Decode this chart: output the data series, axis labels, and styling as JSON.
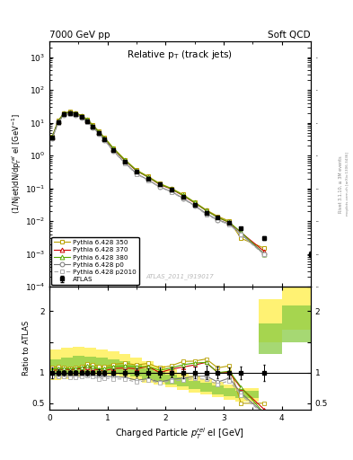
{
  "title_top_left": "7000 GeV pp",
  "title_top_right": "Soft QCD",
  "main_title": "Relative p$_{T}$ (track jets)",
  "ylabel_main": "(1/Njet)dN/dp$^{rel}_{T}$ el [GeV$^{-1}$]",
  "ylabel_ratio": "Ratio to ATLAS",
  "xlabel": "Charged Particle p$^{rel}_{T}$ el [GeV]",
  "watermark": "ATLAS_2011_I919017",
  "right_label_top": "Rivet 3.1.10, ≥ 3M events",
  "right_label_bot": "mcplots.cern.ch [arXiv:1306.3436]",
  "xlim": [
    0,
    4.5
  ],
  "ylim_main": [
    0.0001,
    3000.0
  ],
  "ylim_ratio": [
    0.4,
    2.4
  ],
  "atlas_x": [
    0.05,
    0.15,
    0.25,
    0.35,
    0.45,
    0.55,
    0.65,
    0.75,
    0.85,
    0.95,
    1.1,
    1.3,
    1.5,
    1.7,
    1.9,
    2.1,
    2.3,
    2.5,
    2.7,
    2.9,
    3.1,
    3.3,
    3.7,
    4.5
  ],
  "atlas_y": [
    3.5,
    10.5,
    18.0,
    20.0,
    18.5,
    15.0,
    11.0,
    7.5,
    5.0,
    3.2,
    1.5,
    0.65,
    0.32,
    0.2,
    0.13,
    0.09,
    0.055,
    0.032,
    0.018,
    0.013,
    0.009,
    0.006,
    0.003,
    0.001
  ],
  "atlas_yerr": [
    0.3,
    0.5,
    0.8,
    0.8,
    0.7,
    0.6,
    0.5,
    0.3,
    0.25,
    0.15,
    0.08,
    0.04,
    0.02,
    0.015,
    0.01,
    0.007,
    0.005,
    0.003,
    0.002,
    0.0012,
    0.0008,
    0.0006,
    0.0004,
    0.0002
  ],
  "py350_x": [
    0.05,
    0.15,
    0.25,
    0.35,
    0.45,
    0.55,
    0.65,
    0.75,
    0.85,
    0.95,
    1.1,
    1.3,
    1.5,
    1.7,
    1.9,
    2.1,
    2.3,
    2.5,
    2.7,
    2.9,
    3.1,
    3.3,
    3.7
  ],
  "py350_y": [
    3.8,
    11.5,
    19.5,
    21.5,
    20.0,
    16.5,
    12.5,
    8.5,
    5.5,
    3.5,
    1.7,
    0.75,
    0.36,
    0.23,
    0.14,
    0.1,
    0.065,
    0.038,
    0.022,
    0.014,
    0.01,
    0.003,
    0.0015
  ],
  "py370_x": [
    0.05,
    0.15,
    0.25,
    0.35,
    0.45,
    0.55,
    0.65,
    0.75,
    0.85,
    0.95,
    1.1,
    1.3,
    1.5,
    1.7,
    1.9,
    2.1,
    2.3,
    2.5,
    2.7,
    2.9,
    3.1,
    3.3,
    3.7
  ],
  "py370_y": [
    3.6,
    11.0,
    19.0,
    21.0,
    19.5,
    16.0,
    12.0,
    8.0,
    5.2,
    3.3,
    1.6,
    0.7,
    0.34,
    0.22,
    0.13,
    0.095,
    0.06,
    0.036,
    0.021,
    0.013,
    0.009,
    0.0045,
    0.0012
  ],
  "py380_x": [
    0.05,
    0.15,
    0.25,
    0.35,
    0.45,
    0.55,
    0.65,
    0.75,
    0.85,
    0.95,
    1.1,
    1.3,
    1.5,
    1.7,
    1.9,
    2.1,
    2.3,
    2.5,
    2.7,
    2.9,
    3.1,
    3.3,
    3.7
  ],
  "py380_y": [
    3.7,
    11.2,
    19.2,
    21.2,
    19.8,
    16.2,
    12.2,
    8.2,
    5.3,
    3.4,
    1.65,
    0.72,
    0.35,
    0.22,
    0.135,
    0.097,
    0.062,
    0.037,
    0.021,
    0.013,
    0.0092,
    0.0046,
    0.001
  ],
  "pyp0_x": [
    0.05,
    0.15,
    0.25,
    0.35,
    0.45,
    0.55,
    0.65,
    0.75,
    0.85,
    0.95,
    1.1,
    1.3,
    1.5,
    1.7,
    1.9,
    2.1,
    2.3,
    2.5,
    2.7,
    2.9,
    3.1,
    3.3,
    3.7
  ],
  "pyp0_y": [
    3.4,
    10.2,
    17.5,
    19.0,
    17.5,
    14.5,
    10.8,
    7.2,
    4.7,
    3.0,
    1.4,
    0.6,
    0.28,
    0.18,
    0.11,
    0.08,
    0.05,
    0.03,
    0.017,
    0.011,
    0.0082,
    0.004,
    0.001
  ],
  "pyp2010_x": [
    0.05,
    0.15,
    0.25,
    0.35,
    0.45,
    0.55,
    0.65,
    0.75,
    0.85,
    0.95,
    1.1,
    1.3,
    1.5,
    1.7,
    1.9,
    2.1,
    2.3,
    2.5,
    2.7,
    2.9,
    3.1,
    3.3,
    3.7
  ],
  "pyp2010_y": [
    3.3,
    9.8,
    16.8,
    18.5,
    17.0,
    14.0,
    10.5,
    7.0,
    4.5,
    2.9,
    1.35,
    0.58,
    0.27,
    0.175,
    0.108,
    0.078,
    0.048,
    0.029,
    0.016,
    0.0105,
    0.0078,
    0.0038,
    0.00095
  ],
  "color_atlas": "#000000",
  "color_350": "#b8a000",
  "color_370": "#cc0000",
  "color_380": "#55aa00",
  "color_p0": "#777777",
  "color_p2010": "#aaaaaa",
  "color_band_yellow": "#ffee44",
  "color_band_green": "#88cc44",
  "band_x_edges": [
    0.0,
    0.2,
    0.4,
    0.6,
    0.8,
    1.0,
    1.2,
    1.4,
    1.6,
    1.8,
    2.0,
    2.2,
    2.4,
    2.6,
    2.8,
    3.0,
    3.2,
    3.6,
    4.0,
    4.5
  ],
  "band_yellow_lo": [
    0.88,
    0.9,
    0.93,
    0.96,
    0.97,
    0.95,
    0.92,
    0.88,
    0.84,
    0.8,
    0.76,
    0.72,
    0.68,
    0.64,
    0.6,
    0.56,
    0.52,
    1.5,
    1.7,
    1.7
  ],
  "band_yellow_hi": [
    1.38,
    1.4,
    1.42,
    1.4,
    1.38,
    1.35,
    1.3,
    1.25,
    1.18,
    1.12,
    1.06,
    1.0,
    0.95,
    0.9,
    0.85,
    0.8,
    0.75,
    2.2,
    2.5,
    2.5
  ],
  "band_green_lo": [
    0.93,
    0.95,
    0.98,
    1.0,
    1.01,
    1.0,
    0.97,
    0.93,
    0.89,
    0.85,
    0.81,
    0.77,
    0.73,
    0.69,
    0.65,
    0.61,
    0.58,
    1.3,
    1.5,
    1.5
  ],
  "band_green_hi": [
    1.22,
    1.25,
    1.27,
    1.26,
    1.24,
    1.22,
    1.18,
    1.13,
    1.07,
    1.02,
    0.97,
    0.92,
    0.87,
    0.83,
    0.79,
    0.75,
    0.71,
    1.8,
    2.1,
    2.1
  ]
}
